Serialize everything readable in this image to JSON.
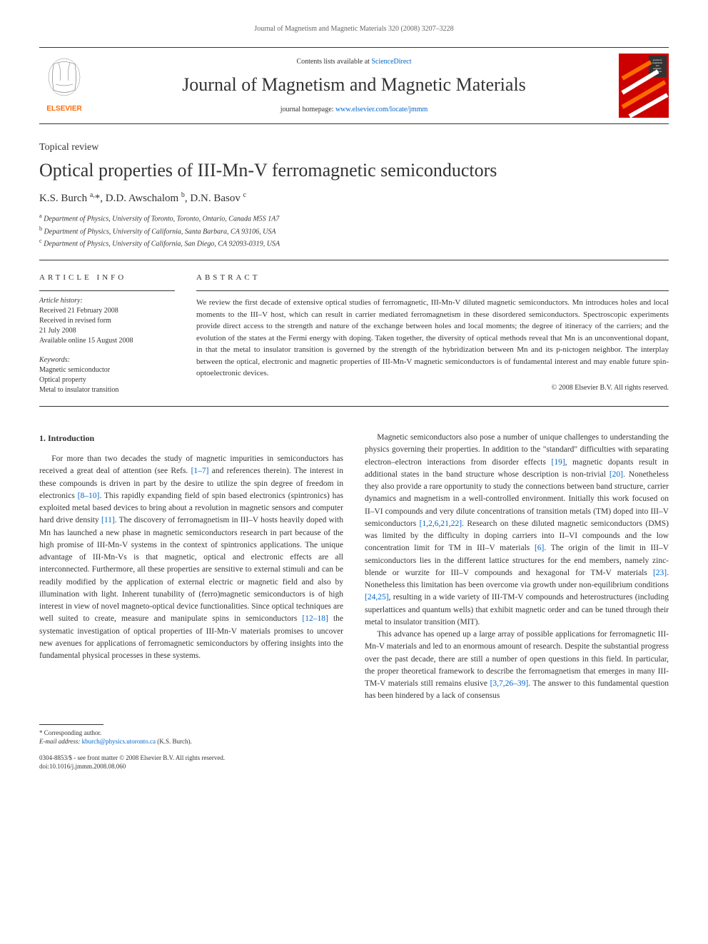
{
  "running_header": "Journal of Magnetism and Magnetic Materials 320 (2008) 3207–3228",
  "banner": {
    "contents_prefix": "Contents lists available at ",
    "contents_link": "ScienceDirect",
    "journal_name": "Journal of Magnetism and Magnetic Materials",
    "homepage_prefix": "journal homepage: ",
    "homepage_link": "www.elsevier.com/locate/jmmm",
    "publisher": "ELSEVIER",
    "cover_tag_top": "journal of magnetism and magnetic materials"
  },
  "article": {
    "type": "Topical review",
    "title": "Optical properties of III-Mn-V ferromagnetic semiconductors",
    "authors_html": "K.S. Burch <sup>a,</sup>*, D.D. Awschalom <sup>b</sup>, D.N. Basov <sup>c</sup>",
    "affiliations": [
      {
        "sup": "a",
        "text": "Department of Physics, University of Toronto, Toronto, Ontario, Canada M5S 1A7"
      },
      {
        "sup": "b",
        "text": "Department of Physics, University of California, Santa Barbara, CA 93106, USA"
      },
      {
        "sup": "c",
        "text": "Department of Physics, University of California, San Diego, CA 92093-0319, USA"
      }
    ]
  },
  "info": {
    "header": "ARTICLE INFO",
    "history_label": "Article history:",
    "history": [
      "Received 21 February 2008",
      "Received in revised form",
      "21 July 2008",
      "Available online 15 August 2008"
    ],
    "keywords_label": "Keywords:",
    "keywords": [
      "Magnetic semiconductor",
      "Optical property",
      "Metal to insulator transition"
    ]
  },
  "abstract": {
    "header": "ABSTRACT",
    "text": "We review the first decade of extensive optical studies of ferromagnetic, III-Mn-V diluted magnetic semiconductors. Mn introduces holes and local moments to the III–V host, which can result in carrier mediated ferromagnetism in these disordered semiconductors. Spectroscopic experiments provide direct access to the strength and nature of the exchange between holes and local moments; the degree of itineracy of the carriers; and the evolution of the states at the Fermi energy with doping. Taken together, the diversity of optical methods reveal that Mn is an unconventional dopant, in that the metal to insulator transition is governed by the strength of the hybridization between Mn and its p-nictogen neighbor. The interplay between the optical, electronic and magnetic properties of III-Mn-V magnetic semiconductors is of fundamental interest and may enable future spin-optoelectronic devices.",
    "copyright": "© 2008 Elsevier B.V. All rights reserved."
  },
  "body": {
    "heading": "1.  Introduction",
    "col1_p1_parts": [
      "For more than two decades the study of magnetic impurities in semiconductors has received a great deal of attention (see Refs. ",
      "[1–7]",
      " and references therein). The interest in these compounds is driven in part by the desire to utilize the spin degree of freedom in electronics ",
      "[8–10]",
      ". This rapidly expanding field of spin based electronics (spintronics) has exploited metal based devices to bring about a revolution in magnetic sensors and computer hard drive density ",
      "[11]",
      ". The discovery of ferromagnetism in III–V hosts heavily doped with Mn has launched a new phase in magnetic semiconductors research in part because of the high promise of III-Mn-V systems in the context of spintronics applications. The unique advantage of III-Mn-Vs is that magnetic, optical and electronic effects are all interconnected. Furthermore, all these properties are sensitive to external stimuli and can be readily modified by the application of external electric or magnetic field and also by illumination with light. Inherent tunability of (ferro)magnetic semiconductors is of high interest in view of novel magneto-optical device functionalities. Since optical techniques are well suited to create, measure and manipulate spins in semiconductors ",
      "[12–18]",
      " the systematic investigation of optical properties of III-Mn-V materials promises to uncover new avenues for applications of ferromagnetic semiconductors by offering insights into the fundamental physical processes in these systems."
    ],
    "col2_p1_parts": [
      "Magnetic semiconductors also pose a number of unique challenges to understanding the physics governing their properties. In addition to the \"standard\" difficulties with separating electron–electron interactions from disorder effects ",
      "[19]",
      ", magnetic dopants result in additional states in the band structure whose description is non-trivial ",
      "[20]",
      ". Nonetheless they also provide a rare opportunity to study the connections between band structure, carrier dynamics and magnetism in a well-controlled environment. Initially this work focused on II–VI compounds and very dilute concentrations of transition metals (TM) doped into III–V semiconductors ",
      "[1,2,6,21,22]",
      ". Research on these diluted magnetic semiconductors (DMS) was limited by the difficulty in doping carriers into II–VI compounds and the low concentration limit for TM in III–V materials ",
      "[6]",
      ". The origin of the limit in III–V semiconductors lies in the different lattice structures for the end members, namely zinc-blende or wurzite for III–V compounds and hexagonal for TM-V materials ",
      "[23]",
      ". Nonetheless this limitation has been overcome via growth under non-equilibrium conditions ",
      "[24,25]",
      ", resulting in a wide variety of III-TM-V compounds and heterostructures (including superlattices and quantum wells) that exhibit magnetic order and can be tuned through their metal to insulator transition (MIT)."
    ],
    "col2_p2_parts": [
      "This advance has opened up a large array of possible applications for ferromagnetic III-Mn-V materials and led to an enormous amount of research. Despite the substantial progress over the past decade, there are still a number of open questions in this field. In particular, the proper theoretical framework to describe the ferromagnetism that emerges in many III-TM-V materials still remains elusive ",
      "[3,7,26–39]",
      ". The answer to this fundamental question has been hindered by a lack of consensus"
    ]
  },
  "footer": {
    "corr_label": "* Corresponding author.",
    "email_label": "E-mail address: ",
    "email": "kburch@physics.utoronto.ca",
    "email_who": " (K.S. Burch).",
    "left1": "0304-8853/$ - see front matter © 2008 Elsevier B.V. All rights reserved.",
    "left2": "doi:10.1016/j.jmmm.2008.08.060"
  },
  "colors": {
    "link": "#0066cc",
    "text": "#333333",
    "elsevier_orange": "#ff6a00",
    "cover_red": "#cc0000"
  }
}
